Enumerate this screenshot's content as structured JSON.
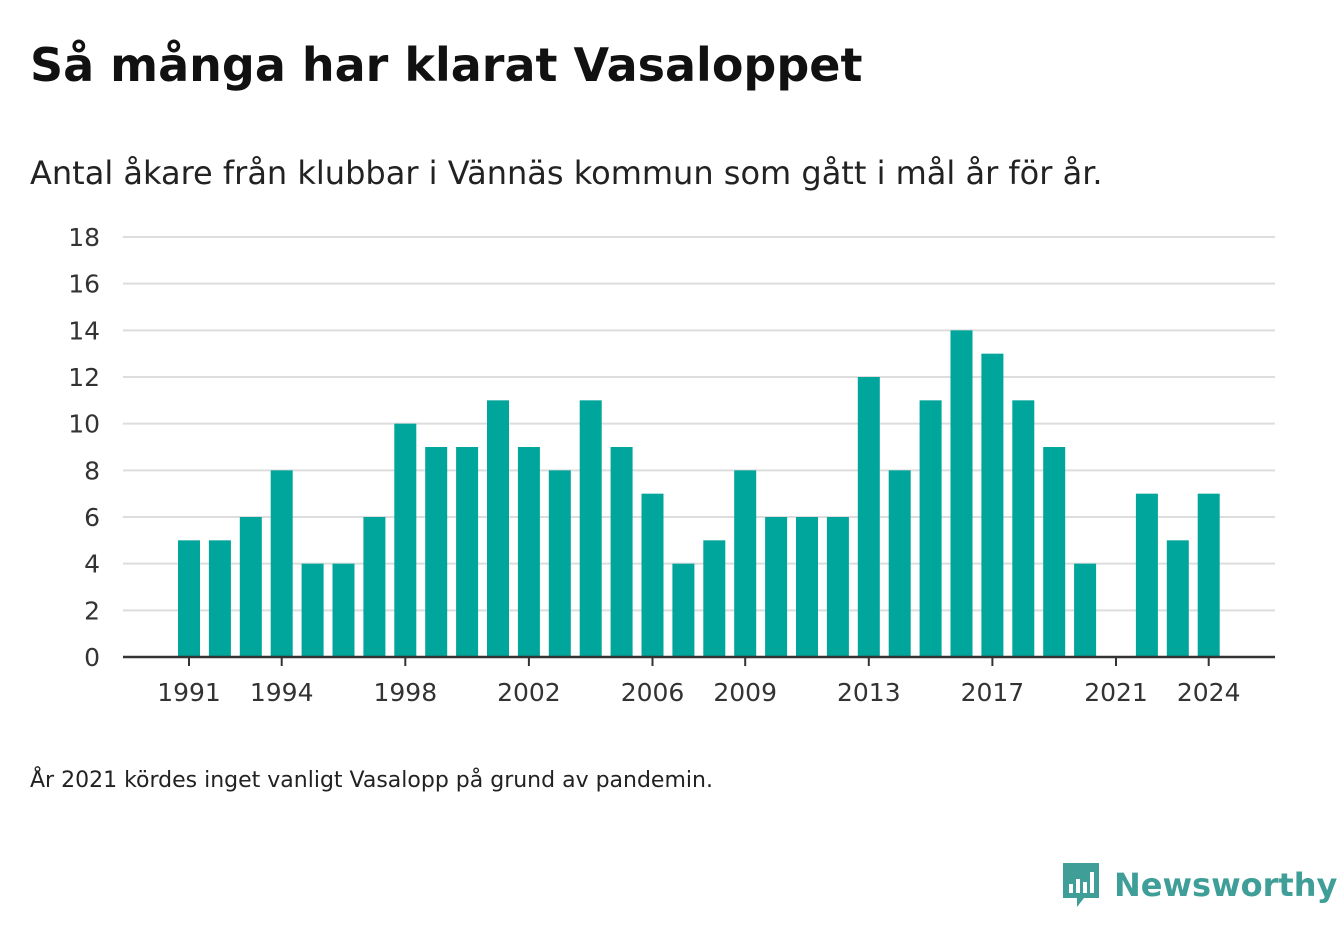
{
  "header": {
    "title": "Så många har klarat Vasaloppet",
    "subtitle": "Antal åkare från klubbar i Vännäs kommun som gått i mål år för år."
  },
  "footer": {
    "note": "År 2021 kördes inget vanligt Vasalopp på grund av pandemin.",
    "brand": "Newsworthy",
    "brand_icon": "bar-chart-speech-bubble-icon"
  },
  "colors": {
    "bar": "#00a59b",
    "brand": "#3f9e97",
    "grid": "#dddddd",
    "axis": "#333333"
  },
  "chart_data": {
    "type": "bar",
    "title": "Så många har klarat Vasaloppet",
    "subtitle": "Antal åkare från klubbar i Vännäs kommun som gått i mål år för år.",
    "categories": [
      1991,
      1992,
      1993,
      1994,
      1995,
      1996,
      1997,
      1998,
      1999,
      2000,
      2001,
      2002,
      2003,
      2004,
      2005,
      2006,
      2007,
      2008,
      2009,
      2010,
      2011,
      2012,
      2013,
      2014,
      2015,
      2016,
      2017,
      2018,
      2019,
      2020,
      2021,
      2022,
      2023,
      2024
    ],
    "values": [
      5,
      5,
      6,
      8,
      4,
      4,
      6,
      10,
      9,
      9,
      11,
      9,
      8,
      11,
      9,
      7,
      4,
      5,
      8,
      6,
      6,
      6,
      12,
      8,
      11,
      14,
      13,
      11,
      9,
      4,
      null,
      7,
      5,
      7
    ],
    "x_tick_labels": [
      "1991",
      "1994",
      "1998",
      "2002",
      "2006",
      "2009",
      "2013",
      "2017",
      "2021",
      "2024"
    ],
    "y_ticks": [
      0,
      2,
      4,
      6,
      8,
      10,
      12,
      14,
      16,
      18
    ],
    "ylim": [
      0,
      18
    ],
    "xlabel": "",
    "ylabel": "",
    "grid": true,
    "legend": "none"
  }
}
